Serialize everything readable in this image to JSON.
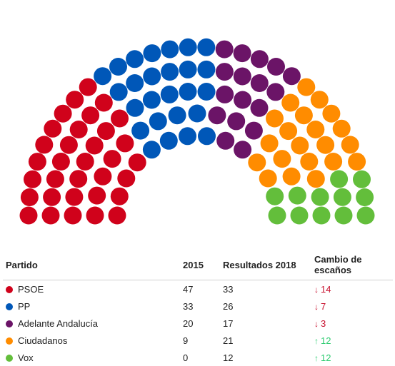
{
  "chart_data": {
    "type": "hemicycle",
    "total_seats": 109,
    "parties": [
      {
        "name": "PSOE",
        "color": "#d0021b",
        "seats_2015": 47,
        "seats_2018": 33,
        "change": 14,
        "direction": "down"
      },
      {
        "name": "PP",
        "color": "#0057b8",
        "seats_2015": 33,
        "seats_2018": 26,
        "change": 7,
        "direction": "down"
      },
      {
        "name": "Adelante Andalucía",
        "color": "#6b1467",
        "seats_2015": 20,
        "seats_2018": 17,
        "change": 3,
        "direction": "down"
      },
      {
        "name": "Ciudadanos",
        "color": "#ff8c00",
        "seats_2015": 9,
        "seats_2018": 21,
        "change": 12,
        "direction": "up"
      },
      {
        "name": "Vox",
        "color": "#63be3b",
        "seats_2015": 0,
        "seats_2018": 12,
        "change": 12,
        "direction": "up"
      }
    ]
  },
  "table": {
    "headers": {
      "party": "Partido",
      "y2015": "2015",
      "y2018": "Resultados 2018",
      "change": "Cambio de escaños"
    },
    "arrow_down": "↓",
    "arrow_up": "↑"
  }
}
